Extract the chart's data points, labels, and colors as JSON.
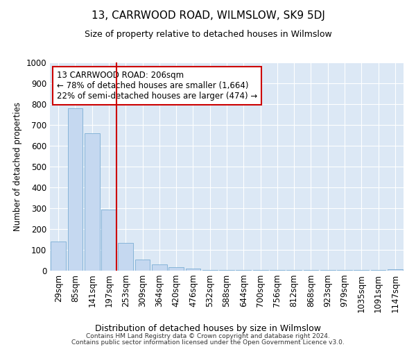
{
  "title": "13, CARRWOOD ROAD, WILMSLOW, SK9 5DJ",
  "subtitle": "Size of property relative to detached houses in Wilmslow",
  "xlabel": "Distribution of detached houses by size in Wilmslow",
  "ylabel": "Number of detached properties",
  "bar_labels": [
    "29sqm",
    "85sqm",
    "141sqm",
    "197sqm",
    "253sqm",
    "309sqm",
    "364sqm",
    "420sqm",
    "476sqm",
    "532sqm",
    "588sqm",
    "644sqm",
    "700sqm",
    "756sqm",
    "812sqm",
    "868sqm",
    "923sqm",
    "979sqm",
    "1035sqm",
    "1091sqm",
    "1147sqm"
  ],
  "bar_values": [
    140,
    780,
    660,
    295,
    135,
    55,
    30,
    18,
    10,
    5,
    3,
    3,
    3,
    3,
    2,
    2,
    2,
    2,
    2,
    2,
    8
  ],
  "bar_color": "#c5d8f0",
  "bar_edge_color": "#7aadd4",
  "annotation_title": "13 CARRWOOD ROAD: 206sqm",
  "annotation_line1": "← 78% of detached houses are smaller (1,664)",
  "annotation_line2": "22% of semi-detached houses are larger (474) →",
  "annotation_box_color": "#ffffff",
  "annotation_box_edge": "#cc0000",
  "red_line_color": "#cc0000",
  "background_color": "#dce8f5",
  "footer1": "Contains HM Land Registry data © Crown copyright and database right 2024.",
  "footer2": "Contains public sector information licensed under the Open Government Licence v3.0.",
  "ylim": [
    0,
    1000
  ],
  "yticks": [
    0,
    100,
    200,
    300,
    400,
    500,
    600,
    700,
    800,
    900,
    1000
  ]
}
